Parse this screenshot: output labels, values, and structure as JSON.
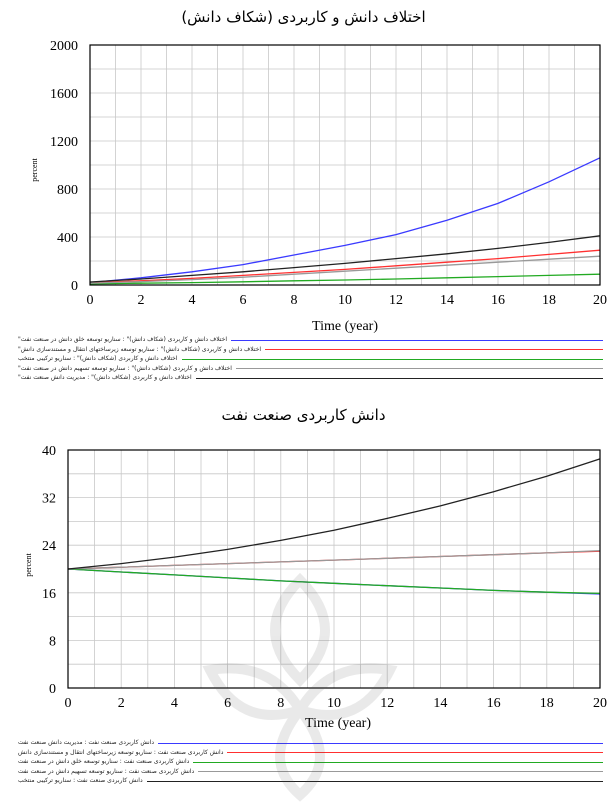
{
  "charts": [
    {
      "title": "اختلاف دانش و کاربردی (شکاف دانش)",
      "xlabel": "Time (year)",
      "ylabel": "percent",
      "legend": [
        {
          "text": "اختلاف دانش و کاربردی (شکاف دانش)\" : سناریو توسعه خلق دانش در صنعت نفت\"",
          "color": "#3a3aff"
        },
        {
          "text": "اختلاف دانش و کاربردی (شکاف دانش)\" : سناریو توسعه زیرساختهای انتقال و مستندسازی دانش\"",
          "color": "#ff3030"
        },
        {
          "text": "اختلاف دانش و کاربردی (شکاف دانش)\" : سناریو ترکیبی منتخب",
          "color": "#22aa22"
        },
        {
          "text": "اختلاف دانش و کاربردی (شکاف دانش)\" : سناریو توسعه تسهیم دانش در صنعت نفت\"",
          "color": "#999999"
        },
        {
          "text": "اختلاف دانش و کاربردی (شکاف دانش)\" : مدیریت دانش صنعت نفت\"",
          "color": "#222222"
        }
      ]
    },
    {
      "title": "دانش کاربردی صنعت نفت",
      "xlabel": "Time (year)",
      "ylabel": "percent",
      "legend": [
        {
          "text": "دانش کاربردی صنعت نفت : مدیریت دانش صنعت نفت",
          "color": "#3a3aff"
        },
        {
          "text": "دانش کاربردی صنعت نفت : سناریو توسعه زیرساختهای انتقال و مستندسازی دانش",
          "color": "#ff3030"
        },
        {
          "text": "دانش کاربردی صنعت نفت : سناریو توسعه خلق دانش در صنعت نفت",
          "color": "#22aa22"
        },
        {
          "text": "دانش کاربردی صنعت نفت : سناریو توسعه تسهیم دانش در صنعت نفت",
          "color": "#999999"
        },
        {
          "text": "دانش کاربردی صنعت نفت : سناریو ترکیبی منتخب",
          "color": "#222222"
        }
      ]
    }
  ],
  "chart_data": [
    {
      "type": "line",
      "title": "اختلاف دانش و کاربردی (شکاف دانش)",
      "xlabel": "Time (year)",
      "ylabel": "percent",
      "xlim": [
        0,
        20
      ],
      "ylim": [
        0,
        2000
      ],
      "x_ticks": [
        0,
        2,
        4,
        6,
        8,
        10,
        12,
        14,
        16,
        18,
        20
      ],
      "y_ticks": [
        0,
        400,
        800,
        1200,
        1600,
        2000
      ],
      "grid": true,
      "x": [
        0,
        2,
        4,
        6,
        8,
        10,
        12,
        14,
        16,
        18,
        20
      ],
      "series": [
        {
          "color": "#3a3aff",
          "values": [
            20,
            60,
            110,
            170,
            250,
            330,
            420,
            540,
            680,
            860,
            1060
          ]
        },
        {
          "color": "#ff3030",
          "values": [
            20,
            35,
            55,
            80,
            105,
            130,
            160,
            190,
            220,
            255,
            290
          ]
        },
        {
          "color": "#22aa22",
          "values": [
            10,
            15,
            20,
            27,
            35,
            42,
            50,
            60,
            70,
            80,
            90
          ]
        },
        {
          "color": "#999999",
          "values": [
            15,
            28,
            45,
            65,
            90,
            115,
            140,
            165,
            190,
            215,
            240
          ]
        },
        {
          "color": "#222222",
          "values": [
            25,
            50,
            80,
            110,
            145,
            180,
            220,
            260,
            305,
            355,
            410
          ]
        }
      ],
      "legend_position": "bottom"
    },
    {
      "type": "line",
      "title": "دانش کاربردی صنعت نفت",
      "xlabel": "Time (year)",
      "ylabel": "percent",
      "xlim": [
        0,
        20
      ],
      "ylim": [
        0,
        40
      ],
      "x_ticks": [
        0,
        2,
        4,
        6,
        8,
        10,
        12,
        14,
        16,
        18,
        20
      ],
      "y_ticks": [
        0,
        8,
        16,
        24,
        32,
        40
      ],
      "grid": true,
      "x": [
        0,
        2,
        4,
        6,
        8,
        10,
        12,
        14,
        16,
        18,
        20
      ],
      "series": [
        {
          "color": "#3a3aff",
          "values": [
            20,
            19.5,
            19,
            18.5,
            18,
            17.6,
            17.2,
            16.8,
            16.4,
            16.1,
            15.8
          ]
        },
        {
          "color": "#ff3030",
          "values": [
            20,
            20.3,
            20.6,
            20.9,
            21.2,
            21.5,
            21.8,
            22.1,
            22.4,
            22.7,
            23
          ]
        },
        {
          "color": "#22aa22",
          "values": [
            20,
            19.5,
            19,
            18.5,
            18,
            17.6,
            17.2,
            16.8,
            16.4,
            16.1,
            15.9
          ]
        },
        {
          "color": "#999999",
          "values": [
            20,
            20.3,
            20.6,
            20.9,
            21.2,
            21.5,
            21.8,
            22.1,
            22.4,
            22.7,
            23.1
          ]
        },
        {
          "color": "#222222",
          "values": [
            20,
            20.9,
            22,
            23.3,
            24.8,
            26.5,
            28.5,
            30.6,
            33,
            35.6,
            38.5
          ]
        }
      ],
      "legend_position": "bottom"
    }
  ]
}
